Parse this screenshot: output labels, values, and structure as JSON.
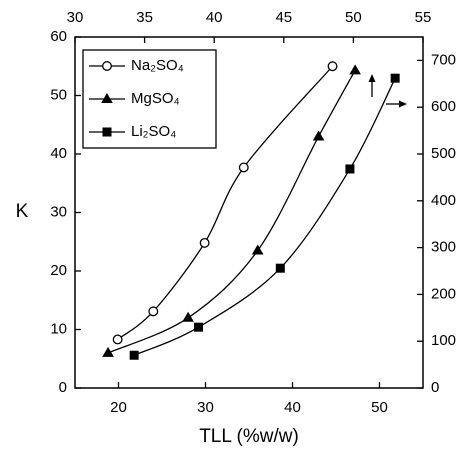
{
  "chart_data": {
    "type": "scatter",
    "x_label": "TLL (%w/w)",
    "y_label": "K",
    "xlim": [
      15,
      55
    ],
    "xticks": [
      20,
      30,
      40,
      50
    ],
    "x2lim": [
      30,
      55
    ],
    "x2ticks": [
      30,
      35,
      40,
      45,
      50,
      55
    ],
    "ylim": [
      0,
      60
    ],
    "yticks": [
      0,
      10,
      20,
      30,
      40,
      50,
      60
    ],
    "y2lim": [
      0,
      750
    ],
    "y2ticks": [
      0,
      100,
      200,
      300,
      400,
      500,
      600,
      700
    ],
    "legend": "upper left",
    "series": [
      {
        "name": "Na₂SO₄",
        "marker": "circle-open",
        "color": "#000000",
        "x": [
          19.9,
          24.0,
          29.9,
          34.4,
          44.6
        ],
        "values": [
          8.3,
          13.1,
          24.8,
          37.7,
          55.0
        ]
      },
      {
        "name": "MgSO₄",
        "marker": "triangle",
        "color": "#000000",
        "x": [
          18.8,
          28.0,
          36.0,
          43.0,
          47.2
        ],
        "values": [
          6.0,
          12.0,
          23.5,
          43.0,
          54.3
        ]
      },
      {
        "name": "Li₂SO₄",
        "marker": "square",
        "color": "#000000",
        "axis": "y2",
        "x": [
          21.8,
          29.2,
          38.6,
          46.6,
          51.8
        ],
        "values": [
          70,
          130,
          256,
          468,
          662
        ]
      }
    ]
  }
}
